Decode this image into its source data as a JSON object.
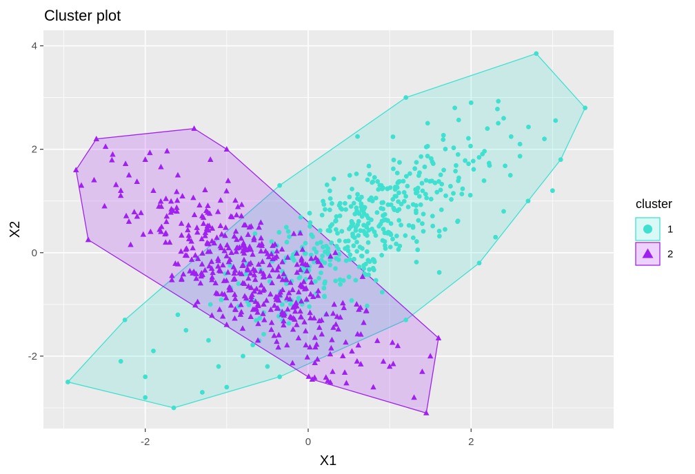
{
  "chart_data": {
    "type": "scatter",
    "title": "Cluster plot",
    "xlabel": "X1",
    "ylabel": "X2",
    "xlim": [
      -3.25,
      3.75
    ],
    "ylim": [
      -3.4,
      4.3
    ],
    "x_ticks": [
      -2,
      0,
      2
    ],
    "x_tick_labels": [
      "-2",
      "0",
      "2"
    ],
    "y_ticks": [
      -2,
      0,
      2,
      4
    ],
    "y_tick_labels": [
      "-2",
      "0",
      "2",
      "4"
    ],
    "grid": true,
    "background": "#EBEBEB",
    "legend": {
      "title": "cluster",
      "position": "right",
      "entries": [
        {
          "label": "1",
          "color": "#40E0D0",
          "shape": "circle"
        },
        {
          "label": "2",
          "color": "#A020F0",
          "shape": "triangle"
        }
      ]
    },
    "series": [
      {
        "name": "1",
        "color": "#40E0D0",
        "marker": "circle",
        "hull": [
          [
            -2.95,
            -2.5
          ],
          [
            -1.65,
            -3.0
          ],
          [
            -0.35,
            -2.4
          ],
          [
            1.2,
            -1.3
          ],
          [
            2.1,
            -0.2
          ],
          [
            3.1,
            1.8
          ],
          [
            3.4,
            2.8
          ],
          [
            2.8,
            3.85
          ],
          [
            1.2,
            3.0
          ],
          [
            -0.35,
            1.3
          ],
          [
            -2.25,
            -1.3
          ]
        ],
        "points": [
          [
            -2.95,
            -2.5
          ],
          [
            -1.65,
            -3.0
          ],
          [
            -0.35,
            -2.4
          ],
          [
            1.2,
            -1.3
          ],
          [
            2.1,
            -0.2
          ],
          [
            3.1,
            1.8
          ],
          [
            3.4,
            2.8
          ],
          [
            2.8,
            3.85
          ],
          [
            1.2,
            3.0
          ],
          [
            -0.35,
            1.3
          ],
          [
            -2.25,
            -1.3
          ],
          [
            -2.3,
            -2.1
          ],
          [
            -2.0,
            -2.4
          ],
          [
            -1.9,
            -1.9
          ],
          [
            -2.0,
            -2.8
          ],
          [
            -1.5,
            -1.5
          ],
          [
            -1.3,
            -2.7
          ],
          [
            -1.1,
            -2.2
          ],
          [
            -1.6,
            -1.2
          ],
          [
            -1.2,
            -1.0
          ],
          [
            -0.8,
            -2.0
          ],
          [
            -0.6,
            -1.7
          ],
          [
            -1.0,
            -2.6
          ],
          [
            -0.5,
            -2.2
          ],
          [
            2.0,
            2.9
          ],
          [
            2.4,
            2.6
          ],
          [
            2.9,
            2.2
          ],
          [
            3.0,
            1.2
          ],
          [
            2.3,
            0.3
          ],
          [
            2.7,
            1.0
          ],
          [
            1.8,
            2.8
          ],
          [
            2.6,
            2.1
          ],
          [
            2.2,
            2.4
          ],
          [
            2.4,
            0.8
          ]
        ],
        "cloud": {
          "count": 420,
          "mean": [
            0.75,
            0.55
          ],
          "sd": [
            0.75,
            0.9
          ],
          "corr": 0.72
        }
      },
      {
        "name": "2",
        "color": "#A020F0",
        "marker": "triangle",
        "hull": [
          [
            -2.85,
            1.6
          ],
          [
            -2.6,
            2.2
          ],
          [
            -1.4,
            2.4
          ],
          [
            -1.0,
            2.0
          ],
          [
            1.6,
            -1.65
          ],
          [
            1.45,
            -3.1
          ],
          [
            0.05,
            -2.45
          ],
          [
            -2.7,
            0.25
          ]
        ],
        "points": [
          [
            -2.85,
            1.6
          ],
          [
            -2.6,
            2.2
          ],
          [
            -1.4,
            2.4
          ],
          [
            -1.0,
            2.0
          ],
          [
            1.6,
            -1.65
          ],
          [
            1.45,
            -3.1
          ],
          [
            0.05,
            -2.45
          ],
          [
            -2.7,
            0.25
          ],
          [
            -2.4,
            1.9
          ],
          [
            -2.2,
            1.5
          ],
          [
            -2.5,
            0.9
          ],
          [
            -2.1,
            0.7
          ],
          [
            -1.9,
            1.2
          ],
          [
            -2.3,
            1.2
          ],
          [
            -1.8,
            0.5
          ],
          [
            -2.0,
            1.8
          ],
          [
            -1.6,
            1.5
          ],
          [
            -1.7,
            0.2
          ],
          [
            -1.2,
            1.8
          ],
          [
            0.8,
            -2.6
          ],
          [
            1.0,
            -2.2
          ],
          [
            1.3,
            -2.8
          ],
          [
            1.4,
            -2.3
          ],
          [
            0.6,
            -2.1
          ],
          [
            1.1,
            -1.8
          ],
          [
            0.3,
            -2.3
          ],
          [
            1.5,
            -2.0
          ]
        ],
        "cloud": {
          "count": 420,
          "mean": [
            -0.75,
            -0.35
          ],
          "sd": [
            0.75,
            0.9
          ],
          "corr": -0.72
        }
      }
    ]
  }
}
